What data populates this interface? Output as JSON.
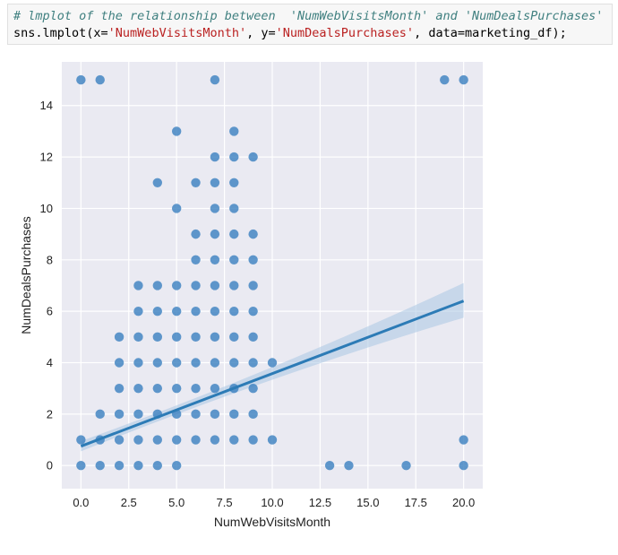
{
  "code_cell": {
    "comment": "# lmplot of the relationship between  'NumWebVisitsMonth' and 'NumDealsPurchases'",
    "line2_prefix": "sns.lmplot(x=",
    "x_arg": "'NumWebVisitsMonth'",
    "line2_mid": ", y=",
    "y_arg": "'NumDealsPurchases'",
    "line2_suffix": ", data=marketing_df);"
  },
  "colors": {
    "plot_background": "#eaeaf2",
    "grid": "#ffffff",
    "points": "#3a7fbf",
    "regression_line": "#2c7bb6",
    "ci_band": "#a9c6e3"
  },
  "chart_data": {
    "type": "scatter",
    "xlabel": "NumWebVisitsMonth",
    "ylabel": "NumDealsPurchases",
    "xlim": [
      -1,
      21
    ],
    "ylim": [
      -0.9,
      15.7
    ],
    "xticks": [
      0.0,
      2.5,
      5.0,
      7.5,
      10.0,
      12.5,
      15.0,
      17.5,
      20.0
    ],
    "xtick_labels": [
      "0.0",
      "2.5",
      "5.0",
      "7.5",
      "10.0",
      "12.5",
      "15.0",
      "17.5",
      "20.0"
    ],
    "yticks": [
      0,
      2,
      4,
      6,
      8,
      10,
      12,
      14
    ],
    "ytick_labels": [
      "0",
      "2",
      "4",
      "6",
      "8",
      "10",
      "12",
      "14"
    ],
    "grid": true,
    "points": [
      [
        0,
        15
      ],
      [
        1,
        15
      ],
      [
        7,
        15
      ],
      [
        19,
        15
      ],
      [
        20,
        15
      ],
      [
        5,
        13
      ],
      [
        8,
        13
      ],
      [
        7,
        12
      ],
      [
        8,
        12
      ],
      [
        9,
        12
      ],
      [
        4,
        11
      ],
      [
        6,
        11
      ],
      [
        7,
        11
      ],
      [
        8,
        11
      ],
      [
        5,
        10
      ],
      [
        7,
        10
      ],
      [
        8,
        10
      ],
      [
        6,
        9
      ],
      [
        7,
        9
      ],
      [
        8,
        9
      ],
      [
        9,
        9
      ],
      [
        6,
        8
      ],
      [
        7,
        8
      ],
      [
        8,
        8
      ],
      [
        9,
        8
      ],
      [
        3,
        7
      ],
      [
        4,
        7
      ],
      [
        5,
        7
      ],
      [
        6,
        7
      ],
      [
        7,
        7
      ],
      [
        8,
        7
      ],
      [
        9,
        7
      ],
      [
        3,
        6
      ],
      [
        4,
        6
      ],
      [
        5,
        6
      ],
      [
        6,
        6
      ],
      [
        7,
        6
      ],
      [
        8,
        6
      ],
      [
        9,
        6
      ],
      [
        2,
        5
      ],
      [
        3,
        5
      ],
      [
        4,
        5
      ],
      [
        5,
        5
      ],
      [
        6,
        5
      ],
      [
        7,
        5
      ],
      [
        8,
        5
      ],
      [
        9,
        5
      ],
      [
        2,
        4
      ],
      [
        3,
        4
      ],
      [
        4,
        4
      ],
      [
        5,
        4
      ],
      [
        6,
        4
      ],
      [
        7,
        4
      ],
      [
        8,
        4
      ],
      [
        9,
        4
      ],
      [
        10,
        4
      ],
      [
        2,
        3
      ],
      [
        3,
        3
      ],
      [
        4,
        3
      ],
      [
        5,
        3
      ],
      [
        6,
        3
      ],
      [
        7,
        3
      ],
      [
        8,
        3
      ],
      [
        9,
        3
      ],
      [
        1,
        2
      ],
      [
        2,
        2
      ],
      [
        3,
        2
      ],
      [
        4,
        2
      ],
      [
        5,
        2
      ],
      [
        6,
        2
      ],
      [
        7,
        2
      ],
      [
        8,
        2
      ],
      [
        9,
        2
      ],
      [
        0,
        1
      ],
      [
        1,
        1
      ],
      [
        2,
        1
      ],
      [
        3,
        1
      ],
      [
        4,
        1
      ],
      [
        5,
        1
      ],
      [
        6,
        1
      ],
      [
        7,
        1
      ],
      [
        8,
        1
      ],
      [
        9,
        1
      ],
      [
        10,
        1
      ],
      [
        20,
        1
      ],
      [
        0,
        0
      ],
      [
        1,
        0
      ],
      [
        2,
        0
      ],
      [
        3,
        0
      ],
      [
        4,
        0
      ],
      [
        5,
        0
      ],
      [
        13,
        0
      ],
      [
        14,
        0
      ],
      [
        17,
        0
      ],
      [
        20,
        0
      ]
    ],
    "regression": {
      "x": [
        0,
        20
      ],
      "y": [
        0.75,
        6.4
      ],
      "ci_upper_end": 7.1,
      "ci_lower_end": 5.75,
      "ci_upper_start": 0.95,
      "ci_lower_start": 0.55
    }
  }
}
